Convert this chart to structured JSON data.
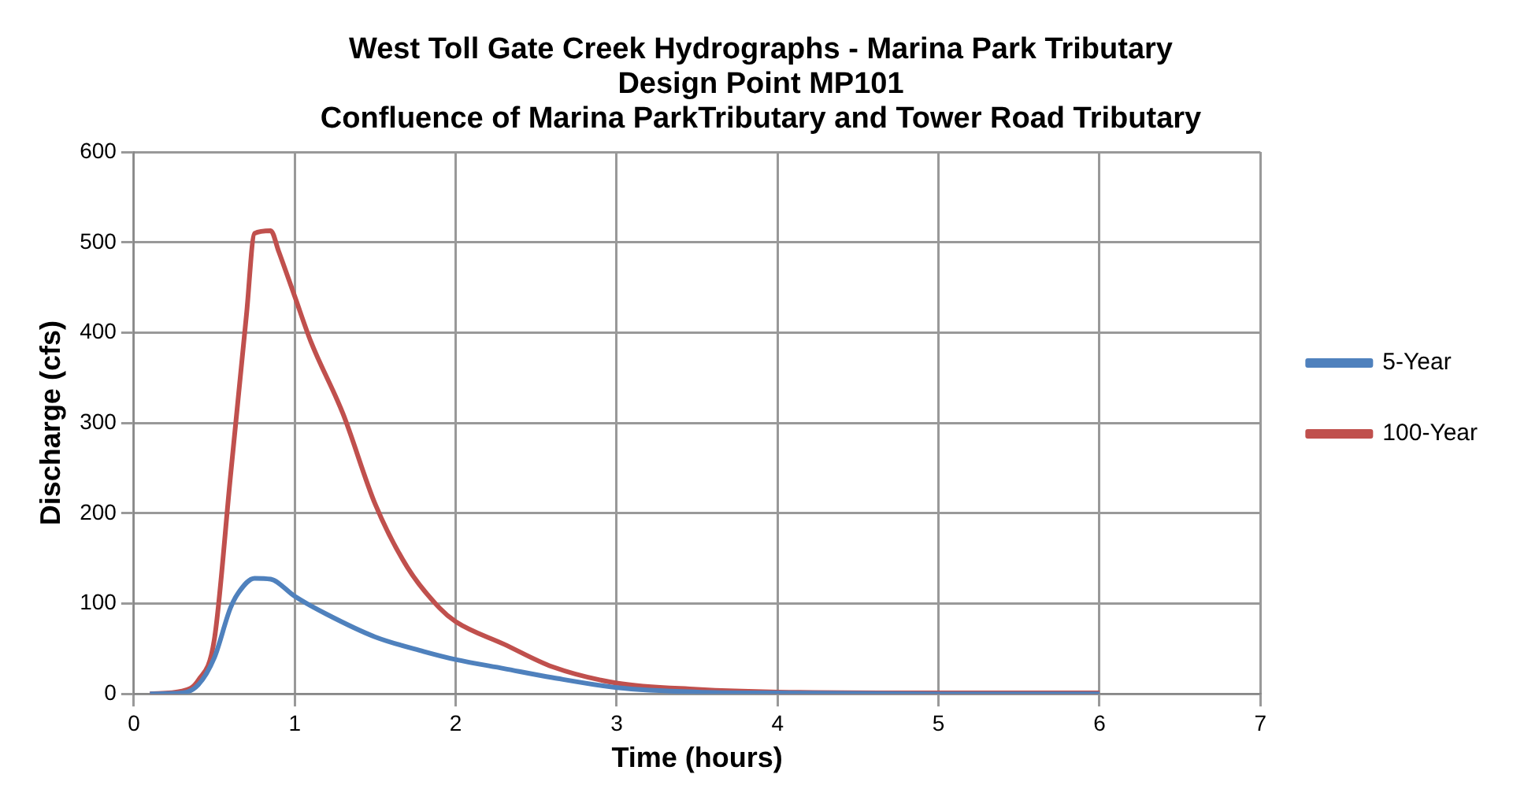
{
  "chart_data": {
    "type": "line",
    "title": "West Toll Gate Creek Hydrographs - Marina Park Tributary\nDesign Point MP101\nConfluence of Marina ParkTributary and Tower Road Tributary",
    "xlabel": "Time (hours)",
    "ylabel": "Discharge (cfs)",
    "xlim": [
      0,
      7
    ],
    "xticks": [
      0,
      1,
      2,
      3,
      4,
      5,
      6,
      7
    ],
    "ylim": [
      0,
      600
    ],
    "yticks": [
      0,
      100,
      200,
      300,
      400,
      500,
      600
    ],
    "grid": true,
    "legend": "right",
    "marker": "none",
    "series": [
      {
        "name": "5-Year",
        "color": "#4f81bd",
        "x": [
          0.1,
          0.3,
          0.4,
          0.5,
          0.6,
          0.65,
          0.75,
          0.85,
          1.0,
          1.2,
          1.5,
          1.8,
          2.0,
          2.3,
          2.6,
          3.0,
          3.5,
          4.0,
          5.0,
          6.0
        ],
        "values": [
          0,
          1,
          10,
          40,
          95,
          112,
          128,
          127,
          108,
          88,
          63,
          47,
          38,
          28,
          18,
          7,
          2,
          1,
          0,
          0
        ]
      },
      {
        "name": "100-Year",
        "color": "#c0504d",
        "x": [
          0.1,
          0.3,
          0.4,
          0.5,
          0.6,
          0.7,
          0.75,
          0.85,
          0.9,
          1.0,
          1.1,
          1.3,
          1.5,
          1.7,
          1.9,
          2.0,
          2.3,
          2.6,
          3.0,
          3.5,
          4.0,
          5.0,
          6.0
        ],
        "values": [
          0,
          3,
          15,
          60,
          240,
          420,
          510,
          513,
          490,
          440,
          390,
          310,
          210,
          140,
          95,
          80,
          55,
          30,
          12,
          5,
          2,
          1,
          1
        ]
      }
    ]
  }
}
